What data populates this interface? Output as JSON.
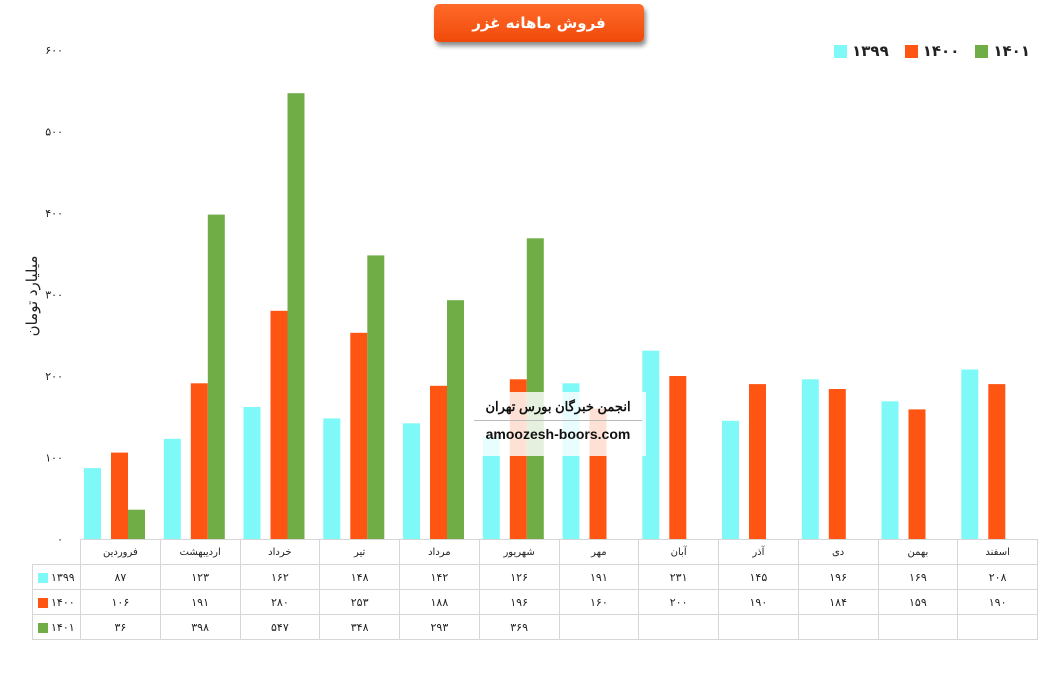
{
  "chart_data": {
    "type": "bar",
    "title": "فروش ماهانه غزر",
    "ylabel": "میلیارد تومان",
    "xlabel": "",
    "ylim": [
      0,
      600
    ],
    "yticks": [
      0,
      100,
      200,
      300,
      400,
      500,
      600
    ],
    "ytick_labels": [
      "۰",
      "۱۰۰",
      "۲۰۰",
      "۳۰۰",
      "۴۰۰",
      "۵۰۰",
      "۶۰۰"
    ],
    "legend_position": "top-right",
    "grid": false,
    "categories": [
      "فروردین",
      "اردیبهشت",
      "خرداد",
      "تیر",
      "مرداد",
      "شهریور",
      "مهر",
      "آبان",
      "آذر",
      "دی",
      "بهمن",
      "اسفند"
    ],
    "series": [
      {
        "name": "۱۳۹۹",
        "color": "#7ff8f8",
        "values": [
          87,
          123,
          162,
          148,
          142,
          126,
          191,
          231,
          145,
          196,
          169,
          208
        ],
        "labels": [
          "۸۷",
          "۱۲۳",
          "۱۶۲",
          "۱۴۸",
          "۱۴۲",
          "۱۲۶",
          "۱۹۱",
          "۲۳۱",
          "۱۴۵",
          "۱۹۶",
          "۱۶۹",
          "۲۰۸"
        ]
      },
      {
        "name": "۱۴۰۰",
        "color": "#ff5512",
        "values": [
          106,
          191,
          280,
          253,
          188,
          196,
          160,
          200,
          190,
          184,
          159,
          190
        ],
        "labels": [
          "۱۰۶",
          "۱۹۱",
          "۲۸۰",
          "۲۵۳",
          "۱۸۸",
          "۱۹۶",
          "۱۶۰",
          "۲۰۰",
          "۱۹۰",
          "۱۸۴",
          "۱۵۹",
          "۱۹۰"
        ]
      },
      {
        "name": "۱۴۰۱",
        "color": "#70ad47",
        "values": [
          36,
          398,
          547,
          348,
          293,
          369,
          null,
          null,
          null,
          null,
          null,
          null
        ],
        "labels": [
          "۳۶",
          "۳۹۸",
          "۵۴۷",
          "۳۴۸",
          "۲۹۳",
          "۳۶۹",
          "",
          "",
          "",
          "",
          "",
          ""
        ]
      }
    ]
  },
  "watermark": {
    "line1": "انجمن خبرگان بورس تهران",
    "line2": "amoozesh-boors.com"
  }
}
